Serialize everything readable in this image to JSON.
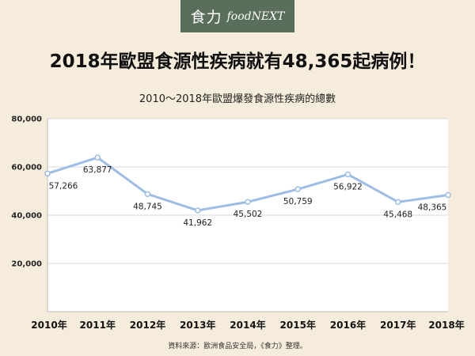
{
  "brand": {
    "logo_chinese": "食力",
    "logo_english": "foodNEXT"
  },
  "headline": "2018年歐盟食源性疾病就有48,365起病例！",
  "source_note": "資料來源：歐洲食品安全局，《食力》整理。",
  "colors": {
    "background": "#f5ecdb",
    "logo_bg": "#5a6e5c",
    "line": "#9dbde6",
    "plot_bg": "#ffffff",
    "grid": "#d9d9d9"
  },
  "chart_data": {
    "type": "line",
    "title": "2010～2018年歐盟爆發食源性疾病的總數",
    "categories": [
      "2010年",
      "2011年",
      "2012年",
      "2013年",
      "2014年",
      "2015年",
      "2016年",
      "2017年",
      "2018年"
    ],
    "values": [
      57266,
      63877,
      48745,
      41962,
      45502,
      50759,
      56922,
      45468,
      48365
    ],
    "data_labels": [
      "57,266",
      "63,877",
      "48,745",
      "41,962",
      "45,502",
      "50,759",
      "56,922",
      "45,468",
      "48,365"
    ],
    "yticks": [
      20000,
      40000,
      60000,
      80000
    ],
    "ytick_labels": [
      "20,000",
      "40,000",
      "60,000",
      "80,000"
    ],
    "ylim": [
      0,
      80000
    ],
    "grid": true,
    "legend": false
  }
}
